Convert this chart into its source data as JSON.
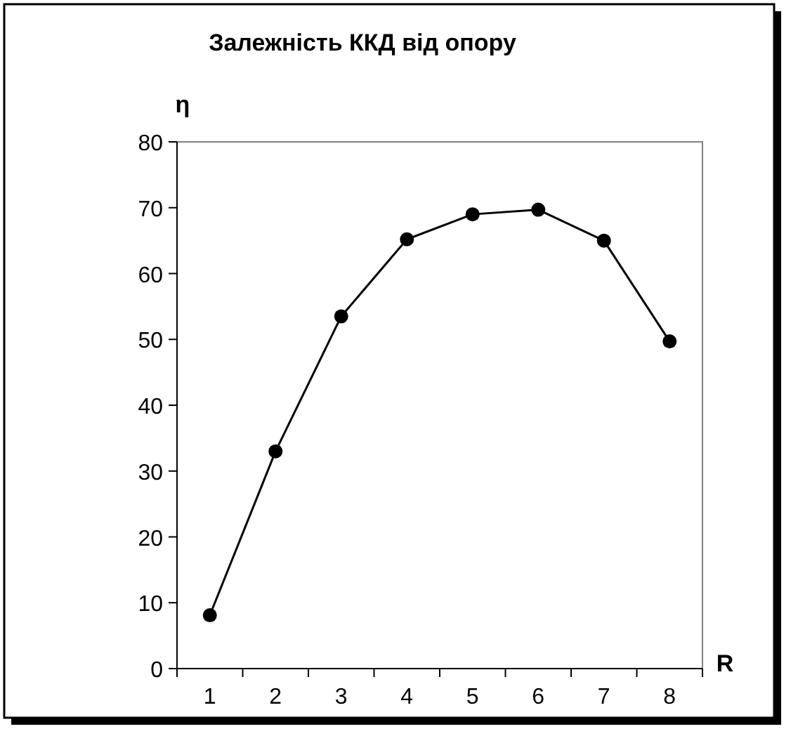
{
  "chart_data": {
    "type": "line",
    "title": "Залежність ККД від опору",
    "xlabel": "R",
    "ylabel": "η",
    "categories": [
      "1",
      "2",
      "3",
      "4",
      "5",
      "6",
      "7",
      "8"
    ],
    "series": [
      {
        "color": "#000000",
        "values": [
          8.1,
          33,
          53.5,
          65.2,
          69,
          69.7,
          65,
          49.7
        ]
      }
    ],
    "ylim": [
      0,
      80
    ],
    "yticks": [
      0,
      10,
      20,
      30,
      40,
      50,
      60,
      70,
      80
    ],
    "marker": "circle",
    "line_style": "solid"
  }
}
